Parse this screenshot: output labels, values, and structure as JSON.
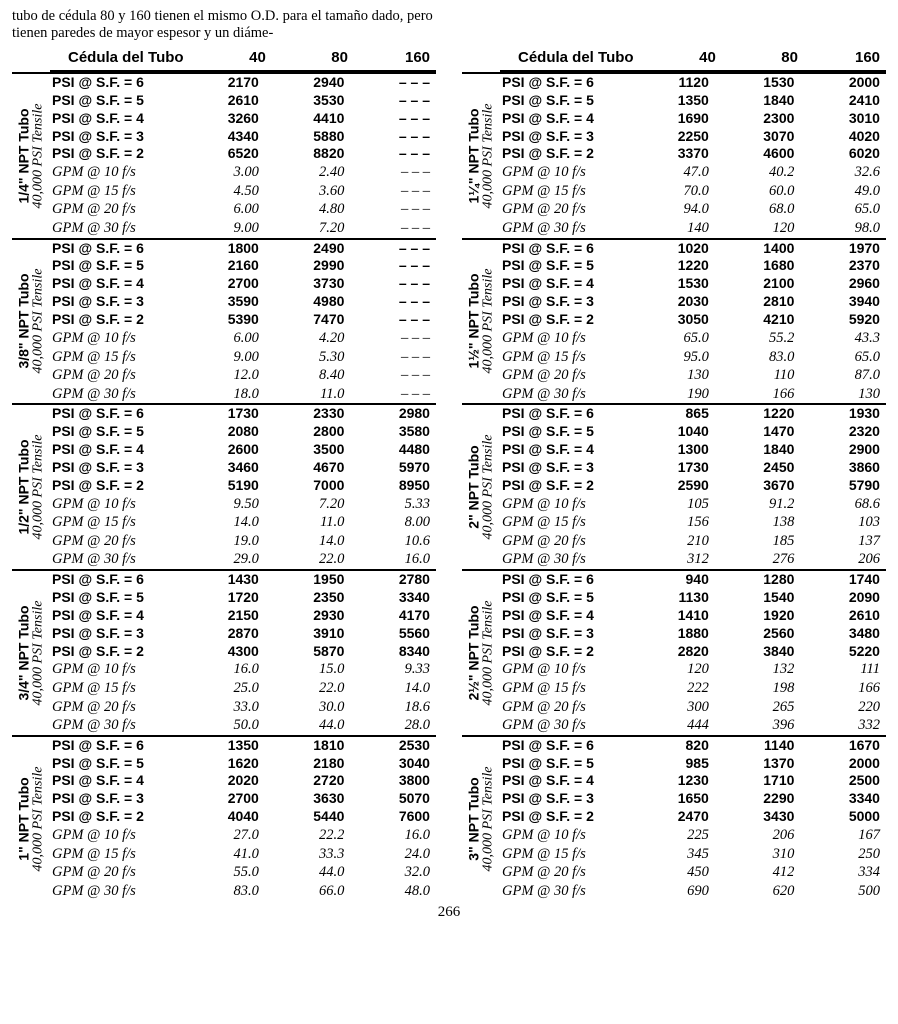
{
  "intro_text": "tubo de cédula 80 y 160 tienen el mismo O.D. para el tamaño dado, pero tienen paredes de mayor espesor y un diáme-",
  "page_number": "266",
  "header": {
    "title": "Cédula del Tubo",
    "cols": [
      "40",
      "80",
      "160"
    ]
  },
  "side_sub": "40,000 PSI Tensile",
  "psi_labels": [
    "PSI @ S.F. = 6",
    "PSI @ S.F. = 5",
    "PSI @ S.F. = 4",
    "PSI @ S.F. = 3",
    "PSI @ S.F. = 2"
  ],
  "gpm_labels": [
    "GPM @ 10 f/s",
    "GPM @ 15 f/s",
    "GPM @ 20 f/s",
    "GPM @ 30 f/s"
  ],
  "dash": "– – –",
  "left": [
    {
      "title": "1/4\" NPT Tubo",
      "psi": [
        [
          "2170",
          "2940",
          "---"
        ],
        [
          "2610",
          "3530",
          "---"
        ],
        [
          "3260",
          "4410",
          "---"
        ],
        [
          "4340",
          "5880",
          "---"
        ],
        [
          "6520",
          "8820",
          "---"
        ]
      ],
      "gpm": [
        [
          "3.00",
          "2.40",
          "---"
        ],
        [
          "4.50",
          "3.60",
          "---"
        ],
        [
          "6.00",
          "4.80",
          "---"
        ],
        [
          "9.00",
          "7.20",
          "---"
        ]
      ]
    },
    {
      "title": "3/8\" NPT Tubo",
      "psi": [
        [
          "1800",
          "2490",
          "---"
        ],
        [
          "2160",
          "2990",
          "---"
        ],
        [
          "2700",
          "3730",
          "---"
        ],
        [
          "3590",
          "4980",
          "---"
        ],
        [
          "5390",
          "7470",
          "---"
        ]
      ],
      "gpm": [
        [
          "6.00",
          "4.20",
          "---"
        ],
        [
          "9.00",
          "5.30",
          "---"
        ],
        [
          "12.0",
          "8.40",
          "---"
        ],
        [
          "18.0",
          "11.0",
          "---"
        ]
      ]
    },
    {
      "title": "1/2\" NPT Tubo",
      "psi": [
        [
          "1730",
          "2330",
          "2980"
        ],
        [
          "2080",
          "2800",
          "3580"
        ],
        [
          "2600",
          "3500",
          "4480"
        ],
        [
          "3460",
          "4670",
          "5970"
        ],
        [
          "5190",
          "7000",
          "8950"
        ]
      ],
      "gpm": [
        [
          "9.50",
          "7.20",
          "5.33"
        ],
        [
          "14.0",
          "11.0",
          "8.00"
        ],
        [
          "19.0",
          "14.0",
          "10.6"
        ],
        [
          "29.0",
          "22.0",
          "16.0"
        ]
      ]
    },
    {
      "title": "3/4\" NPT Tubo",
      "psi": [
        [
          "1430",
          "1950",
          "2780"
        ],
        [
          "1720",
          "2350",
          "3340"
        ],
        [
          "2150",
          "2930",
          "4170"
        ],
        [
          "2870",
          "3910",
          "5560"
        ],
        [
          "4300",
          "5870",
          "8340"
        ]
      ],
      "gpm": [
        [
          "16.0",
          "15.0",
          "9.33"
        ],
        [
          "25.0",
          "22.0",
          "14.0"
        ],
        [
          "33.0",
          "30.0",
          "18.6"
        ],
        [
          "50.0",
          "44.0",
          "28.0"
        ]
      ]
    },
    {
      "title": "1\" NPT Tubo",
      "psi": [
        [
          "1350",
          "1810",
          "2530"
        ],
        [
          "1620",
          "2180",
          "3040"
        ],
        [
          "2020",
          "2720",
          "3800"
        ],
        [
          "2700",
          "3630",
          "5070"
        ],
        [
          "4040",
          "5440",
          "7600"
        ]
      ],
      "gpm": [
        [
          "27.0",
          "22.2",
          "16.0"
        ],
        [
          "41.0",
          "33.3",
          "24.0"
        ],
        [
          "55.0",
          "44.0",
          "32.0"
        ],
        [
          "83.0",
          "66.0",
          "48.0"
        ]
      ]
    }
  ],
  "right": [
    {
      "title": "1¼\" NPT Tubo",
      "psi": [
        [
          "1120",
          "1530",
          "2000"
        ],
        [
          "1350",
          "1840",
          "2410"
        ],
        [
          "1690",
          "2300",
          "3010"
        ],
        [
          "2250",
          "3070",
          "4020"
        ],
        [
          "3370",
          "4600",
          "6020"
        ]
      ],
      "gpm": [
        [
          "47.0",
          "40.2",
          "32.6"
        ],
        [
          "70.0",
          "60.0",
          "49.0"
        ],
        [
          "94.0",
          "68.0",
          "65.0"
        ],
        [
          "140",
          "120",
          "98.0"
        ]
      ]
    },
    {
      "title": "1½\" NPT Tubo",
      "psi": [
        [
          "1020",
          "1400",
          "1970"
        ],
        [
          "1220",
          "1680",
          "2370"
        ],
        [
          "1530",
          "2100",
          "2960"
        ],
        [
          "2030",
          "2810",
          "3940"
        ],
        [
          "3050",
          "4210",
          "5920"
        ]
      ],
      "gpm": [
        [
          "65.0",
          "55.2",
          "43.3"
        ],
        [
          "95.0",
          "83.0",
          "65.0"
        ],
        [
          "130",
          "110",
          "87.0"
        ],
        [
          "190",
          "166",
          "130"
        ]
      ]
    },
    {
      "title": "2\" NPT Tubo",
      "psi": [
        [
          "865",
          "1220",
          "1930"
        ],
        [
          "1040",
          "1470",
          "2320"
        ],
        [
          "1300",
          "1840",
          "2900"
        ],
        [
          "1730",
          "2450",
          "3860"
        ],
        [
          "2590",
          "3670",
          "5790"
        ]
      ],
      "gpm": [
        [
          "105",
          "91.2",
          "68.6"
        ],
        [
          "156",
          "138",
          "103"
        ],
        [
          "210",
          "185",
          "137"
        ],
        [
          "312",
          "276",
          "206"
        ]
      ]
    },
    {
      "title": "2½\" NPT Tubo",
      "psi": [
        [
          "940",
          "1280",
          "1740"
        ],
        [
          "1130",
          "1540",
          "2090"
        ],
        [
          "1410",
          "1920",
          "2610"
        ],
        [
          "1880",
          "2560",
          "3480"
        ],
        [
          "2820",
          "3840",
          "5220"
        ]
      ],
      "gpm": [
        [
          "120",
          "132",
          "111"
        ],
        [
          "222",
          "198",
          "166"
        ],
        [
          "300",
          "265",
          "220"
        ],
        [
          "444",
          "396",
          "332"
        ]
      ]
    },
    {
      "title": "3\" NPT Tubo",
      "psi": [
        [
          "820",
          "1140",
          "1670"
        ],
        [
          "985",
          "1370",
          "2000"
        ],
        [
          "1230",
          "1710",
          "2500"
        ],
        [
          "1650",
          "2290",
          "3340"
        ],
        [
          "2470",
          "3430",
          "5000"
        ]
      ],
      "gpm": [
        [
          "225",
          "206",
          "167"
        ],
        [
          "345",
          "310",
          "250"
        ],
        [
          "450",
          "412",
          "334"
        ],
        [
          "690",
          "620",
          "500"
        ]
      ]
    }
  ]
}
